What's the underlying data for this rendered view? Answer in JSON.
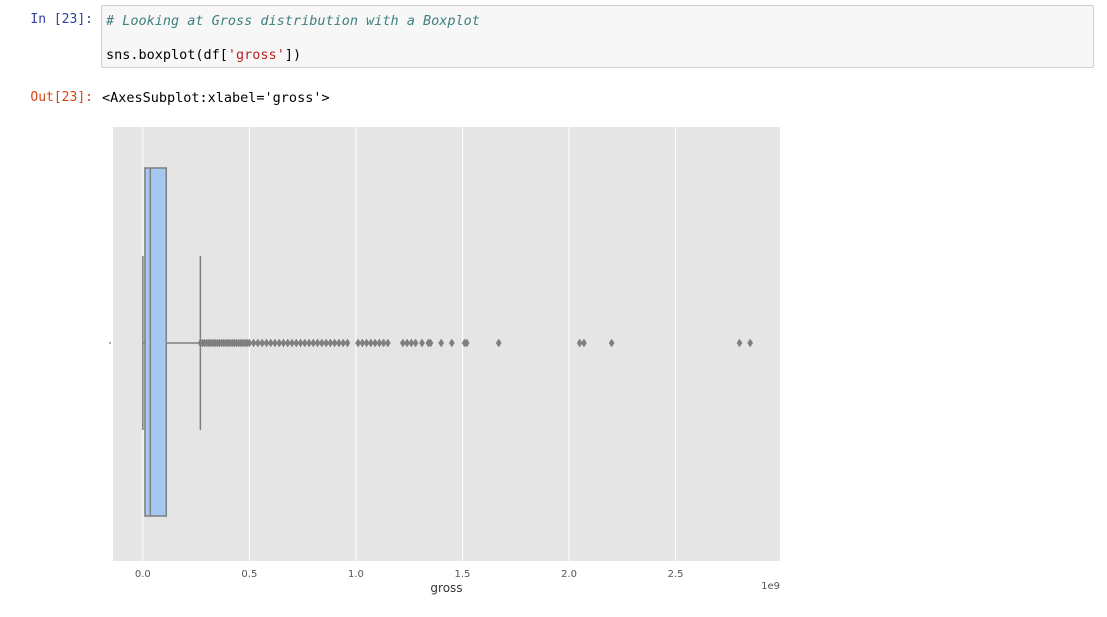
{
  "notebook": {
    "input_prompt": "In [23]:",
    "output_prompt": "Out[23]:",
    "code_comment": "# Looking at Gross distribution with a Boxplot",
    "code_prefix": "sns.boxplot(df[",
    "code_string": "'gross'",
    "code_suffix": "])",
    "output_repr": "<AxesSubplot:xlabel='gross'>"
  },
  "chart_data": {
    "type": "boxplot",
    "xlabel": "gross",
    "ylabel": "",
    "offset_label": "1e9",
    "xlim": [
      -0.14,
      2.99
    ],
    "xticks": [
      0.0,
      0.5,
      1.0,
      1.5,
      2.0,
      2.5
    ],
    "xtick_labels": [
      "0.0",
      "0.5",
      "1.0",
      "1.5",
      "2.0",
      "2.5"
    ],
    "box": {
      "q1": 0.01,
      "median": 0.035,
      "q3": 0.11,
      "whisker_low": 0.0,
      "whisker_high": 0.27
    },
    "outliers": [
      0.27,
      0.28,
      0.29,
      0.3,
      0.31,
      0.32,
      0.33,
      0.34,
      0.35,
      0.36,
      0.37,
      0.38,
      0.39,
      0.4,
      0.41,
      0.42,
      0.43,
      0.44,
      0.45,
      0.46,
      0.47,
      0.48,
      0.49,
      0.5,
      0.52,
      0.54,
      0.56,
      0.58,
      0.6,
      0.62,
      0.64,
      0.66,
      0.68,
      0.7,
      0.72,
      0.74,
      0.76,
      0.78,
      0.8,
      0.82,
      0.84,
      0.86,
      0.88,
      0.9,
      0.92,
      0.94,
      0.96,
      1.01,
      1.03,
      1.05,
      1.07,
      1.09,
      1.11,
      1.13,
      1.15,
      1.22,
      1.24,
      1.26,
      1.28,
      1.31,
      1.34,
      1.35,
      1.4,
      1.45,
      1.51,
      1.52,
      1.67,
      2.05,
      2.07,
      2.2,
      2.8,
      2.85
    ],
    "colors": {
      "plot_background": "#e5e5e5",
      "grid": "#ffffff",
      "box_fill": "#a6c8f0",
      "line": "#7f7f7f",
      "outlier": "#7f7f7f"
    },
    "grid": true
  }
}
